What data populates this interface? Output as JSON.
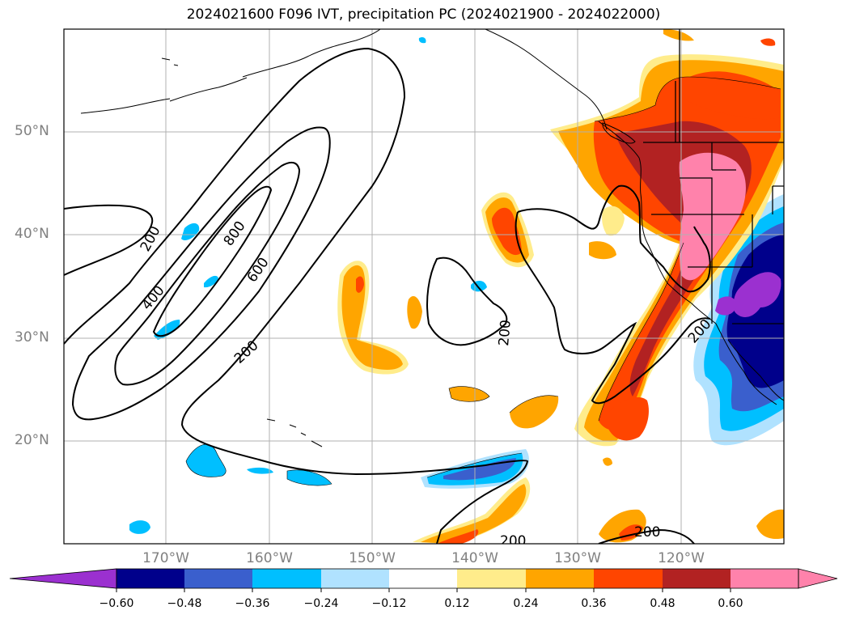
{
  "title": "2024021600 F096 IVT, precipitation PC (2024021900 - 2024022000)",
  "map": {
    "region": "North-East Pacific / Western North America",
    "lat_labels": [
      "50°N",
      "40°N",
      "30°N",
      "20°N"
    ],
    "lon_labels": [
      "170°W",
      "160°W",
      "150°W",
      "140°W",
      "130°W",
      "120°W"
    ],
    "ivt_contour_labels": [
      "200",
      "400",
      "600",
      "800",
      "200",
      "200",
      "200",
      "200",
      "200"
    ],
    "grid": true
  },
  "colorbar": {
    "ticks": [
      "−0.60",
      "−0.48",
      "−0.36",
      "−0.24",
      "−0.12",
      "0.12",
      "0.24",
      "0.36",
      "0.48",
      "0.60"
    ],
    "colors": [
      "#9b30d0",
      "#00008b",
      "#3a5fcd",
      "#00bfff",
      "#b0e2ff",
      "#ffffff",
      "#ffec8b",
      "#ffa500",
      "#ff4500",
      "#b22222",
      "#ff82ab",
      "#ff82ab"
    ]
  }
}
